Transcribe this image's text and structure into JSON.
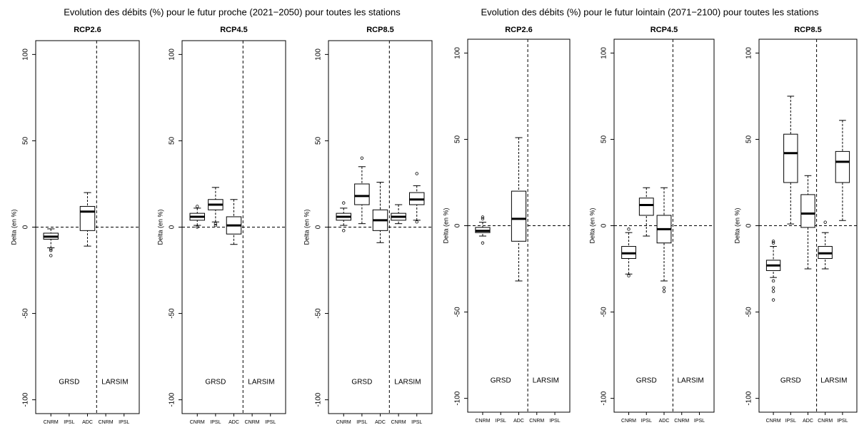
{
  "chart_data": [
    {
      "type": "box",
      "suptitle": "Evolution des débits (%) pour le futur proche (2021−2050) pour toutes les stations",
      "title": "RCP2.6",
      "ylabel": "Delta (en %)",
      "categories": [
        "CNRM",
        "IPSL",
        "ADC",
        "CNRM",
        "IPSL"
      ],
      "groups": [
        {
          "label": "GRSD",
          "size": 3
        },
        {
          "label": "LARSIM",
          "size": 2
        }
      ],
      "ylim": [
        -108,
        108
      ],
      "yticks": [
        -100,
        -50,
        0,
        50,
        100
      ],
      "hline": 0,
      "boxes": [
        {
          "whislo": -12,
          "q1": -7,
          "med": -5.5,
          "q3": -3.5,
          "whishi": -1,
          "fliers": [
            -12.7,
            -13.5,
            -16.5
          ]
        },
        null,
        {
          "whislo": -11,
          "q1": -2,
          "med": 9,
          "q3": 12,
          "whishi": 20,
          "fliers": []
        },
        null,
        null
      ]
    },
    {
      "type": "box",
      "title": "RCP4.5",
      "ylabel": "Delta (en %)",
      "categories": [
        "CNRM",
        "IPSL",
        "ADC",
        "CNRM",
        "IPSL"
      ],
      "groups": [
        {
          "label": "GRSD",
          "size": 3
        },
        {
          "label": "LARSIM",
          "size": 2
        }
      ],
      "ylim": [
        -108,
        108
      ],
      "yticks": [
        -100,
        -50,
        0,
        50,
        100
      ],
      "hline": 0,
      "boxes": [
        {
          "whislo": 1,
          "q1": 4,
          "med": 6,
          "q3": 8,
          "whishi": 11,
          "fliers": [
            12,
            0
          ]
        },
        {
          "whislo": 3,
          "q1": 10,
          "med": 13,
          "q3": 16,
          "whishi": 23,
          "fliers": [
            1,
            2
          ]
        },
        {
          "whislo": -10,
          "q1": -4,
          "med": 1,
          "q3": 6,
          "whishi": 16,
          "fliers": []
        },
        null,
        null
      ]
    },
    {
      "type": "box",
      "title": "RCP8.5",
      "ylabel": "Delta (en %)",
      "categories": [
        "CNRM",
        "IPSL",
        "ADC",
        "CNRM",
        "IPSL"
      ],
      "groups": [
        {
          "label": "GRSD",
          "size": 3
        },
        {
          "label": "LARSIM",
          "size": 2
        }
      ],
      "ylim": [
        -108,
        108
      ],
      "yticks": [
        -100,
        -50,
        0,
        50,
        100
      ],
      "hline": 0,
      "boxes": [
        {
          "whislo": 1,
          "q1": 4,
          "med": 6,
          "q3": 8,
          "whishi": 11,
          "fliers": [
            14,
            -2
          ]
        },
        {
          "whislo": 2,
          "q1": 13,
          "med": 18,
          "q3": 25,
          "whishi": 35,
          "fliers": [
            40
          ]
        },
        {
          "whislo": -9,
          "q1": -2,
          "med": 4,
          "q3": 10,
          "whishi": 26,
          "fliers": []
        },
        {
          "whislo": 2,
          "q1": 4,
          "med": 6,
          "q3": 8,
          "whishi": 13,
          "fliers": []
        },
        {
          "whislo": 4,
          "q1": 13,
          "med": 16,
          "q3": 20,
          "whishi": 24,
          "fliers": [
            31,
            3
          ]
        }
      ]
    },
    {
      "type": "box",
      "suptitle": "Evolution des débits (%) pour le futur lointain (2071−2100) pour toutes les stations",
      "title": "RCP2.6",
      "ylabel": "Delta (en %)",
      "categories": [
        "CNRM",
        "IPSL",
        "ADC",
        "CNRM",
        "IPSL"
      ],
      "groups": [
        {
          "label": "GRSD",
          "size": 3
        },
        {
          "label": "LARSIM",
          "size": 2
        }
      ],
      "ylim": [
        -108,
        108
      ],
      "yticks": [
        -100,
        -50,
        0,
        50,
        100
      ],
      "hline": 0,
      "boxes": [
        {
          "whislo": -6,
          "q1": -4,
          "med": -3,
          "q3": -1,
          "whishi": 2,
          "fliers": [
            4,
            5,
            -10
          ]
        },
        null,
        {
          "whislo": -32,
          "q1": -9,
          "med": 4,
          "q3": 20,
          "whishi": 51,
          "fliers": []
        },
        null,
        null
      ]
    },
    {
      "type": "box",
      "title": "RCP4.5",
      "ylabel": "Delta (en %)",
      "categories": [
        "CNRM",
        "IPSL",
        "ADC",
        "CNRM",
        "IPSL"
      ],
      "groups": [
        {
          "label": "GRSD",
          "size": 3
        },
        {
          "label": "LARSIM",
          "size": 2
        }
      ],
      "ylim": [
        -108,
        108
      ],
      "yticks": [
        -100,
        -50,
        0,
        50,
        100
      ],
      "hline": 0,
      "boxes": [
        {
          "whislo": -28,
          "q1": -19,
          "med": -16,
          "q3": -12,
          "whishi": -4,
          "fliers": [
            -2,
            -29
          ]
        },
        {
          "whislo": -6,
          "q1": 6,
          "med": 12,
          "q3": 16,
          "whishi": 22,
          "fliers": []
        },
        {
          "whislo": -32,
          "q1": -10,
          "med": -2,
          "q3": 6,
          "whishi": 22,
          "fliers": [
            -36,
            -38
          ]
        },
        null,
        null
      ]
    },
    {
      "type": "box",
      "title": "RCP8.5",
      "ylabel": "Delta (en %)",
      "categories": [
        "CNRM",
        "IPSL",
        "ADC",
        "CNRM",
        "IPSL"
      ],
      "groups": [
        {
          "label": "GRSD",
          "size": 3
        },
        {
          "label": "LARSIM",
          "size": 2
        }
      ],
      "ylim": [
        -108,
        108
      ],
      "yticks": [
        -100,
        -50,
        0,
        50,
        100
      ],
      "hline": 0,
      "boxes": [
        {
          "whislo": -30,
          "q1": -26,
          "med": -23,
          "q3": -20,
          "whishi": -12,
          "fliers": [
            -9,
            -10,
            -32,
            -36,
            -38,
            -43
          ]
        },
        {
          "whislo": 1,
          "q1": 25,
          "med": 42,
          "q3": 53,
          "whishi": 75,
          "fliers": []
        },
        {
          "whislo": -25,
          "q1": -1,
          "med": 7,
          "q3": 18,
          "whishi": 29,
          "fliers": []
        },
        {
          "whislo": -25,
          "q1": -19,
          "med": -16,
          "q3": -12,
          "whishi": -4,
          "fliers": [
            2
          ]
        },
        {
          "whislo": 3,
          "q1": 25,
          "med": 37,
          "q3": 43,
          "whishi": 61,
          "fliers": []
        }
      ]
    }
  ]
}
